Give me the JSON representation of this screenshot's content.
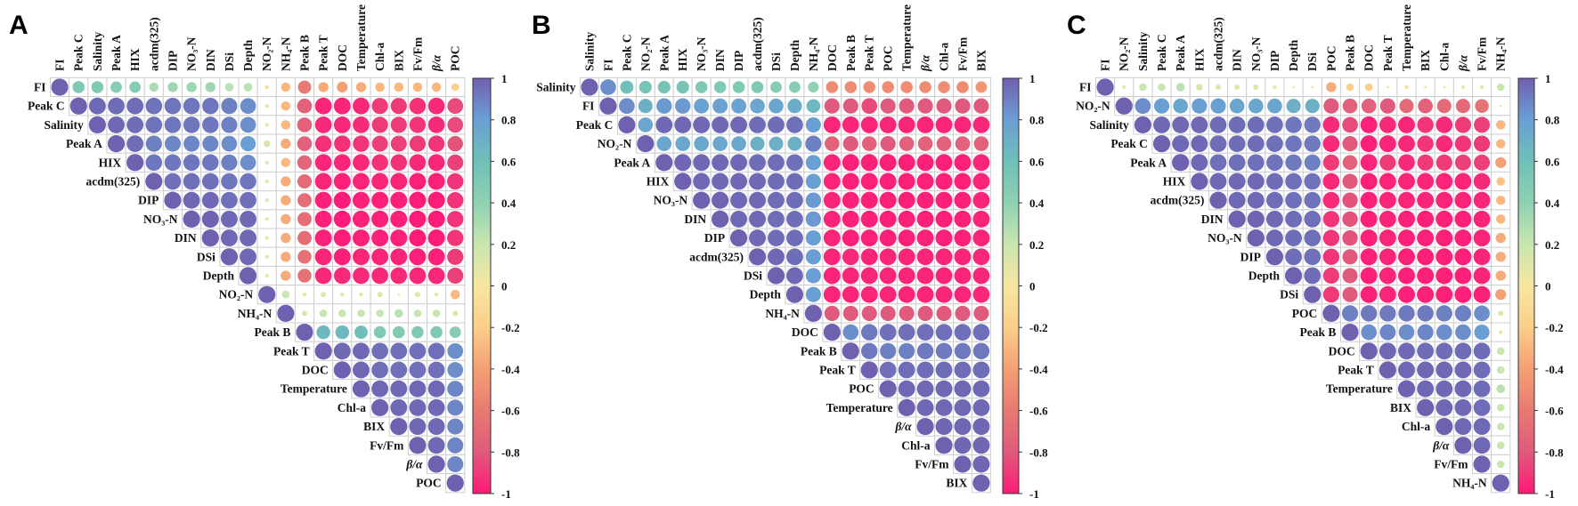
{
  "chart_data": [
    {
      "type": "heatmap",
      "panel": "A",
      "title": "A",
      "variables": [
        "FI",
        "Peak C",
        "Salinity",
        "Peak A",
        "HIX",
        "acdm(325)",
        "DIP",
        "NO₃-N",
        "DIN",
        "DSi",
        "Depth",
        "NO₂-N",
        "NH₄-N",
        "Peak B",
        "Peak T",
        "DOC",
        "Temperature",
        "Chl-a",
        "BIX",
        "Fv/Fm",
        "β/α",
        "POC"
      ],
      "matrix_upper": [
        [
          1,
          0.5,
          0.5,
          0.45,
          0.45,
          0.3,
          0.35,
          0.35,
          0.35,
          0.25,
          0.25,
          -0.05,
          -0.3,
          -0.6,
          -0.35,
          -0.4,
          -0.35,
          -0.3,
          -0.3,
          -0.3,
          -0.3,
          -0.2
        ],
        [
          1,
          0.97,
          0.96,
          0.96,
          0.94,
          0.93,
          0.93,
          0.93,
          0.9,
          0.85,
          0.05,
          -0.3,
          -0.75,
          -0.97,
          -0.97,
          -0.96,
          -0.9,
          -0.9,
          -0.93,
          -0.95,
          -0.85
        ],
        [
          1,
          0.97,
          0.96,
          0.94,
          0.93,
          0.93,
          0.93,
          0.9,
          0.85,
          0.05,
          -0.3,
          -0.75,
          -0.96,
          -0.96,
          -0.95,
          -0.9,
          -0.9,
          -0.92,
          -0.95,
          -0.85
        ],
        [
          1,
          0.96,
          0.9,
          0.88,
          0.88,
          0.88,
          0.85,
          0.8,
          0.15,
          -0.35,
          -0.75,
          -0.93,
          -0.93,
          -0.92,
          -0.88,
          -0.88,
          -0.9,
          -0.92,
          -0.82
        ],
        [
          1,
          0.93,
          0.93,
          0.93,
          0.93,
          0.9,
          0.85,
          0.05,
          -0.3,
          -0.72,
          -0.97,
          -0.97,
          -0.96,
          -0.93,
          -0.93,
          -0.95,
          -0.96,
          -0.88
        ],
        [
          1,
          0.95,
          0.95,
          0.95,
          0.93,
          0.93,
          0.05,
          -0.35,
          -0.7,
          -0.97,
          -0.98,
          -0.97,
          -0.97,
          -0.97,
          -0.98,
          -0.98,
          -0.92
        ],
        [
          1,
          0.97,
          0.97,
          0.95,
          0.95,
          0.05,
          -0.35,
          -0.68,
          -0.98,
          -0.99,
          -0.98,
          -0.98,
          -0.98,
          -0.99,
          -0.99,
          -0.92
        ],
        [
          1,
          0.99,
          0.97,
          0.97,
          0.05,
          -0.35,
          -0.68,
          -0.98,
          -0.99,
          -0.98,
          -0.98,
          -0.98,
          -0.99,
          -0.99,
          -0.92
        ],
        [
          1,
          0.97,
          0.97,
          0.05,
          -0.35,
          -0.68,
          -0.98,
          -0.99,
          -0.98,
          -0.98,
          -0.98,
          -0.99,
          -0.99,
          -0.92
        ],
        [
          1,
          0.97,
          0.05,
          -0.35,
          -0.65,
          -0.97,
          -0.98,
          -0.97,
          -0.97,
          -0.97,
          -0.98,
          -0.98,
          -0.9
        ],
        [
          1,
          0.05,
          -0.35,
          -0.65,
          -0.95,
          -0.95,
          -0.95,
          -0.95,
          -0.95,
          -0.96,
          -0.96,
          -0.88
        ],
        [
          1,
          0.2,
          0.05,
          0.1,
          0.05,
          0.05,
          0.1,
          0.02,
          0.1,
          0.05,
          -0.3
        ],
        [
          1,
          0.1,
          0.2,
          0.2,
          0.2,
          0.2,
          0.25,
          0.2,
          0.2,
          0.1
        ],
        [
          1,
          0.65,
          0.65,
          0.6,
          0.5,
          0.5,
          0.5,
          0.5,
          0.45
        ],
        [
          1,
          0.97,
          0.97,
          0.95,
          0.95,
          0.95,
          0.95,
          0.85
        ],
        [
          1,
          0.97,
          0.95,
          0.95,
          0.95,
          0.95,
          0.85
        ],
        [
          1,
          0.97,
          0.97,
          0.97,
          0.97,
          0.88
        ],
        [
          1,
          0.97,
          0.97,
          0.97,
          0.88
        ],
        [
          1,
          0.97,
          0.97,
          0.88
        ],
        [
          1,
          0.97,
          0.88
        ],
        [
          1,
          0.88
        ],
        [
          1
        ]
      ],
      "colorbar_ticks": [
        "1",
        "0.8",
        "0.6",
        "0.4",
        "0.2",
        "0",
        "-0.2",
        "-0.4",
        "-0.6",
        "-0.8",
        "-1"
      ],
      "range": [
        -1,
        1
      ]
    },
    {
      "type": "heatmap",
      "panel": "B",
      "title": "B",
      "variables": [
        "Salinity",
        "FI",
        "Peak C",
        "NO₂-N",
        "Peak A",
        "HIX",
        "NO₃-N",
        "DIN",
        "DIP",
        "acdm(325)",
        "DSi",
        "Depth",
        "NH₄-N",
        "DOC",
        "Peak B",
        "Peak T",
        "POC",
        "Temperature",
        "β/α",
        "Chl-a",
        "Fv/Fm",
        "BIX"
      ],
      "matrix_upper": [
        [
          1,
          0.85,
          0.6,
          0.55,
          0.55,
          0.55,
          0.5,
          0.5,
          0.5,
          0.5,
          0.45,
          0.45,
          0.4,
          -0.5,
          -0.5,
          -0.5,
          -0.5,
          -0.5,
          -0.5,
          -0.5,
          -0.5,
          -0.45
        ],
        [
          1,
          0.85,
          0.7,
          0.82,
          0.82,
          0.78,
          0.78,
          0.78,
          0.75,
          0.75,
          0.72,
          0.65,
          -0.8,
          -0.8,
          -0.85,
          -0.8,
          -0.8,
          -0.8,
          -0.8,
          -0.8,
          -0.8
        ],
        [
          1,
          0.75,
          0.97,
          0.97,
          0.97,
          0.97,
          0.97,
          0.96,
          0.96,
          0.95,
          0.8,
          -0.97,
          -0.97,
          -0.97,
          -0.97,
          -0.97,
          -0.97,
          -0.97,
          -0.97,
          -0.96
        ],
        [
          1,
          0.75,
          0.75,
          0.75,
          0.75,
          0.75,
          0.7,
          0.7,
          0.7,
          0.9,
          -0.75,
          -0.8,
          -0.75,
          -0.8,
          -0.75,
          -0.75,
          -0.75,
          -0.75,
          -0.75
        ],
        [
          1,
          0.98,
          0.97,
          0.97,
          0.97,
          0.96,
          0.96,
          0.95,
          0.8,
          -0.97,
          -0.98,
          -0.98,
          -0.98,
          -0.98,
          -0.98,
          -0.98,
          -0.98,
          -0.97
        ],
        [
          1,
          0.97,
          0.97,
          0.97,
          0.97,
          0.96,
          0.96,
          0.8,
          -0.97,
          -0.98,
          -0.98,
          -0.98,
          -0.98,
          -0.98,
          -0.98,
          -0.98,
          -0.97
        ],
        [
          1,
          0.99,
          0.97,
          0.97,
          0.96,
          0.96,
          0.82,
          -0.97,
          -0.98,
          -0.98,
          -0.98,
          -0.98,
          -0.98,
          -0.98,
          -0.98,
          -0.97
        ],
        [
          1,
          0.97,
          0.97,
          0.96,
          0.96,
          0.82,
          -0.97,
          -0.98,
          -0.98,
          -0.98,
          -0.98,
          -0.98,
          -0.98,
          -0.98,
          -0.97
        ],
        [
          1,
          0.97,
          0.96,
          0.96,
          0.8,
          -0.97,
          -0.98,
          -0.98,
          -0.98,
          -0.98,
          -0.98,
          -0.98,
          -0.98,
          -0.97
        ],
        [
          1,
          0.97,
          0.96,
          0.8,
          -0.97,
          -0.95,
          -0.97,
          -0.97,
          -0.97,
          -0.97,
          -0.97,
          -0.97,
          -0.96
        ],
        [
          1,
          0.97,
          0.8,
          -0.97,
          -0.97,
          -0.97,
          -0.97,
          -0.97,
          -0.97,
          -0.97,
          -0.97,
          -0.96
        ],
        [
          1,
          0.8,
          -0.97,
          -0.97,
          -0.97,
          -0.97,
          -0.97,
          -0.97,
          -0.97,
          -0.97,
          -0.96
        ],
        [
          1,
          -0.8,
          -0.8,
          -0.8,
          -0.8,
          -0.8,
          -0.8,
          -0.8,
          -0.8,
          -0.8
        ],
        [
          1,
          0.85,
          0.92,
          0.95,
          0.95,
          0.95,
          0.95,
          0.95,
          0.95
        ],
        [
          1,
          0.92,
          0.9,
          0.9,
          0.92,
          0.92,
          0.92,
          0.92
        ],
        [
          1,
          0.95,
          0.96,
          0.96,
          0.96,
          0.96,
          0.96
        ],
        [
          1,
          0.97,
          0.97,
          0.97,
          0.97,
          0.97
        ],
        [
          1,
          0.97,
          0.97,
          0.97,
          0.97
        ],
        [
          1,
          0.98,
          0.98,
          0.98
        ],
        [
          1,
          0.98,
          0.98
        ],
        [
          1,
          0.98
        ],
        [
          1
        ]
      ],
      "colorbar_ticks": [
        "1",
        "0.8",
        "0.6",
        "0.4",
        "0.2",
        "0",
        "-0.2",
        "-0.4",
        "-0.6",
        "-0.8",
        "-1"
      ],
      "range": [
        -1,
        1
      ]
    },
    {
      "type": "heatmap",
      "panel": "C",
      "title": "C",
      "variables": [
        "FI",
        "NO₂-N",
        "Salinity",
        "Peak C",
        "Peak A",
        "HIX",
        "acdm(325)",
        "DIN",
        "NO₃-N",
        "DIP",
        "Depth",
        "DSi",
        "POC",
        "Peak B",
        "DOC",
        "Peak T",
        "Temperature",
        "BIX",
        "Chl-a",
        "β/α",
        "Fv/Fm",
        "NH₄-N"
      ],
      "matrix_upper": [
        [
          1,
          0.05,
          0.2,
          0.2,
          0.25,
          0.15,
          0.1,
          0.1,
          0.1,
          0.05,
          0.02,
          0.02,
          -0.35,
          -0.2,
          -0.2,
          -0.02,
          -0.05,
          -0.02,
          -0.02,
          0.05,
          0.05,
          0.2
        ],
        [
          1,
          0.85,
          0.8,
          0.75,
          0.8,
          0.8,
          0.75,
          0.75,
          0.75,
          0.7,
          0.7,
          -0.8,
          -0.75,
          -0.75,
          -0.8,
          -0.7,
          -0.75,
          -0.7,
          -0.7,
          -0.65,
          0.02
        ],
        [
          1,
          0.97,
          0.97,
          0.97,
          0.96,
          0.96,
          0.96,
          0.95,
          0.93,
          0.92,
          -0.95,
          -0.85,
          -0.98,
          -0.95,
          -0.97,
          -0.92,
          -0.95,
          -0.9,
          -0.88,
          -0.3
        ],
        [
          1,
          0.97,
          0.97,
          0.96,
          0.96,
          0.96,
          0.95,
          0.93,
          0.92,
          -0.95,
          -0.8,
          -0.98,
          -0.97,
          -0.96,
          -0.92,
          -0.95,
          -0.92,
          -0.9,
          -0.3
        ],
        [
          1,
          0.97,
          0.95,
          0.95,
          0.95,
          0.94,
          0.92,
          0.9,
          -0.9,
          -0.75,
          -0.97,
          -0.9,
          -0.95,
          -0.9,
          -0.9,
          -0.88,
          -0.88,
          -0.4
        ],
        [
          1,
          0.97,
          0.97,
          0.97,
          0.96,
          0.95,
          0.94,
          -0.95,
          -0.8,
          -0.98,
          -0.97,
          -0.97,
          -0.97,
          -0.97,
          -0.97,
          -0.95,
          -0.25
        ],
        [
          1,
          0.97,
          0.97,
          0.96,
          0.95,
          0.94,
          -0.95,
          -0.82,
          -0.98,
          -0.97,
          -0.97,
          -0.97,
          -0.97,
          -0.97,
          -0.96,
          -0.3
        ],
        [
          1,
          0.99,
          0.97,
          0.96,
          0.95,
          -0.92,
          -0.82,
          -0.98,
          -0.97,
          -0.98,
          -0.98,
          -0.98,
          -0.98,
          -0.97,
          -0.3
        ],
        [
          1,
          0.97,
          0.96,
          0.95,
          -0.92,
          -0.82,
          -0.98,
          -0.97,
          -0.98,
          -0.98,
          -0.98,
          -0.98,
          -0.97,
          -0.35
        ],
        [
          1,
          0.96,
          0.95,
          -0.92,
          -0.8,
          -0.98,
          -0.97,
          -0.98,
          -0.98,
          -0.98,
          -0.98,
          -0.97,
          -0.35
        ],
        [
          1,
          0.96,
          -0.9,
          -0.8,
          -0.98,
          -0.97,
          -0.98,
          -0.98,
          -0.98,
          -0.98,
          -0.97,
          -0.35
        ],
        [
          1,
          -0.9,
          -0.8,
          -0.98,
          -0.97,
          -0.98,
          -0.98,
          -0.98,
          -0.98,
          -0.98,
          -0.4
        ],
        [
          1,
          0.9,
          0.92,
          0.92,
          0.92,
          0.92,
          0.9,
          0.9,
          0.85,
          0.1
        ],
        [
          1,
          0.85,
          0.88,
          0.85,
          0.88,
          0.85,
          0.85,
          0.8,
          0.05
        ],
        [
          1,
          0.97,
          0.97,
          0.96,
          0.96,
          0.96,
          0.96,
          0.2
        ],
        [
          1,
          0.97,
          0.97,
          0.97,
          0.97,
          0.96,
          0.2
        ],
        [
          1,
          0.97,
          0.97,
          0.97,
          0.96,
          0.25
        ],
        [
          1,
          0.97,
          0.97,
          0.96,
          0.2
        ],
        [
          1,
          0.97,
          0.97,
          0.2
        ],
        [
          1,
          0.97,
          0.2
        ],
        [
          1,
          0.2
        ],
        [
          1
        ]
      ],
      "colorbar_ticks": [
        "1",
        "0.8",
        "0.6",
        "0.4",
        "0.2",
        "0",
        "-0.2",
        "-0.4",
        "-0.6",
        "-0.8",
        "-1"
      ],
      "range": [
        -1,
        1
      ]
    }
  ],
  "colors": {
    "scale": [
      [
        -1,
        "#ff1a78"
      ],
      [
        -0.8,
        "#df5a7c"
      ],
      [
        -0.6,
        "#e77a72"
      ],
      [
        -0.4,
        "#f4a074"
      ],
      [
        -0.2,
        "#fbcf8a"
      ],
      [
        0,
        "#f7e6a0"
      ],
      [
        0.2,
        "#c8e6b0"
      ],
      [
        0.4,
        "#8fd1b2"
      ],
      [
        0.6,
        "#6fc0b8"
      ],
      [
        0.8,
        "#6a9fd4"
      ],
      [
        1,
        "#7060b0"
      ]
    ],
    "grid": "#cfcfcf"
  }
}
